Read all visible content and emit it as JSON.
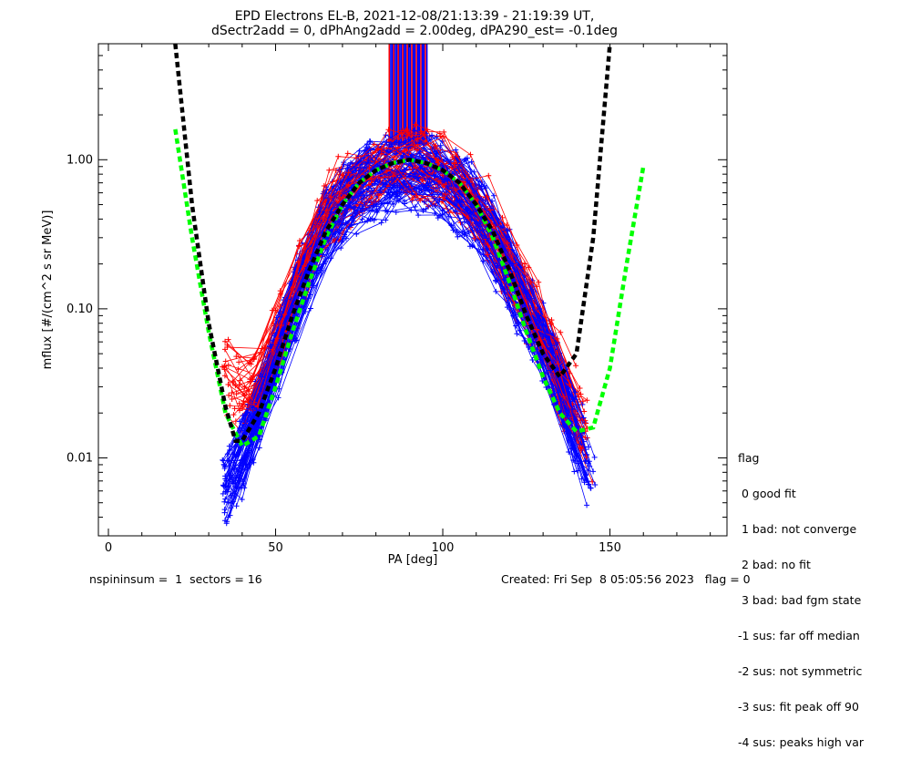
{
  "chart_data": {
    "type": "line",
    "title_line1": "EPD Electrons EL-B, 2021-12-08/21:13:39 - 21:19:39 UT,",
    "title_line2": "dSectr2add = 0, dPhAng2add = 2.00deg, dPA290_est=  -0.1deg",
    "xlabel": "PA [deg]",
    "ylabel": "mflux [#/(cm^2 s sr MeV)]",
    "xlim": [
      -3,
      185
    ],
    "ylim": [
      0.003,
      6.0
    ],
    "yscale": "log",
    "xticks": [
      0,
      50,
      100,
      150
    ],
    "xtick_labels": [
      "0",
      "50",
      "100",
      "150"
    ],
    "yticks": [
      0.01,
      0.1,
      1.0
    ],
    "ytick_labels": [
      "0.01",
      "0.10",
      "1.00"
    ],
    "series": [
      {
        "color": "#ff0000",
        "marker": "plus",
        "description_points": [
          [
            35,
            0.04
          ],
          [
            40,
            0.025
          ],
          [
            45,
            0.03
          ],
          [
            50,
            0.06
          ],
          [
            55,
            0.12
          ],
          [
            60,
            0.25
          ],
          [
            65,
            0.45
          ],
          [
            70,
            0.6
          ],
          [
            75,
            0.75
          ],
          [
            80,
            0.9
          ],
          [
            85,
            1.0
          ],
          [
            90,
            1.0
          ],
          [
            95,
            0.95
          ],
          [
            100,
            0.85
          ],
          [
            105,
            0.7
          ],
          [
            110,
            0.5
          ],
          [
            115,
            0.35
          ],
          [
            120,
            0.2
          ],
          [
            125,
            0.12
          ],
          [
            130,
            0.07
          ],
          [
            135,
            0.035
          ],
          [
            140,
            0.02
          ],
          [
            145,
            0.012
          ]
        ]
      },
      {
        "color": "#0000ff",
        "marker": "plus",
        "description_points": [
          [
            35,
            0.006
          ],
          [
            40,
            0.01
          ],
          [
            45,
            0.02
          ],
          [
            50,
            0.045
          ],
          [
            55,
            0.1
          ],
          [
            60,
            0.2
          ],
          [
            65,
            0.35
          ],
          [
            70,
            0.5
          ],
          [
            75,
            0.65
          ],
          [
            80,
            0.75
          ],
          [
            85,
            0.8
          ],
          [
            90,
            0.82
          ],
          [
            95,
            0.8
          ],
          [
            100,
            0.75
          ],
          [
            105,
            0.6
          ],
          [
            110,
            0.45
          ],
          [
            115,
            0.3
          ],
          [
            120,
            0.18
          ],
          [
            125,
            0.1
          ],
          [
            130,
            0.06
          ],
          [
            135,
            0.03
          ],
          [
            140,
            0.015
          ],
          [
            145,
            0.007
          ]
        ]
      },
      {
        "color": "#00ff00",
        "style": "dashed",
        "x": [
          20,
          25,
          30,
          35,
          40,
          45,
          50,
          55,
          60,
          65,
          70,
          75,
          80,
          85,
          90,
          95,
          100,
          105,
          110,
          115,
          120,
          125,
          130,
          135,
          140,
          145,
          150,
          155,
          160
        ],
        "y": [
          1.6,
          0.3,
          0.07,
          0.02,
          0.012,
          0.014,
          0.03,
          0.07,
          0.15,
          0.3,
          0.5,
          0.7,
          0.85,
          0.95,
          1.0,
          0.95,
          0.85,
          0.7,
          0.5,
          0.3,
          0.15,
          0.07,
          0.035,
          0.02,
          0.015,
          0.016,
          0.04,
          0.2,
          0.9
        ]
      },
      {
        "color": "#000000",
        "style": "dashed",
        "x": [
          20,
          25,
          30,
          35,
          38,
          40,
          45,
          50,
          55,
          60,
          65,
          70,
          75,
          80,
          85,
          90,
          95,
          100,
          105,
          110,
          115,
          120,
          125,
          130,
          135,
          140,
          145,
          150
        ],
        "y": [
          6.0,
          0.5,
          0.08,
          0.022,
          0.013,
          0.013,
          0.02,
          0.04,
          0.09,
          0.18,
          0.33,
          0.5,
          0.7,
          0.85,
          0.95,
          1.0,
          0.95,
          0.85,
          0.7,
          0.5,
          0.33,
          0.18,
          0.09,
          0.05,
          0.035,
          0.05,
          0.3,
          6.0
        ]
      }
    ]
  },
  "legend": {
    "title": "flag",
    "items": [
      " 0 good fit",
      " 1 bad: not converge",
      " 2 bad: no fit",
      " 3 bad: bad fgm state",
      "-1 sus: far off median",
      "-2 sus: not symmetric",
      "-3 sus: fit peak off 90",
      "-4 sus: peaks high var"
    ]
  },
  "footer": {
    "left": "nspininsum =  1  sectors = 16",
    "right": "Created: Fri Sep  8 05:05:56 2023   flag = 0"
  }
}
